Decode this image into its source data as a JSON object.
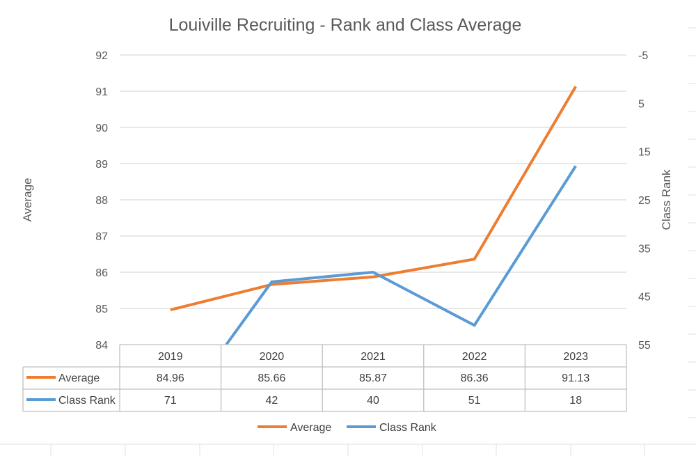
{
  "chart_data": {
    "type": "line",
    "title": "Louiville Recruiting - Rank and Class Average",
    "categories": [
      "2019",
      "2020",
      "2021",
      "2022",
      "2023"
    ],
    "series": [
      {
        "name": "Average",
        "axis": "left",
        "color": "#ED7D31",
        "values": [
          84.96,
          85.66,
          85.87,
          86.36,
          91.13
        ],
        "display_values": [
          "84.96",
          "85.66",
          "85.87",
          "86.36",
          "91.13"
        ]
      },
      {
        "name": "Class Rank",
        "axis": "right",
        "color": "#5B9BD5",
        "values": [
          71,
          42,
          40,
          51,
          18
        ],
        "display_values": [
          "71",
          "42",
          "40",
          "51",
          "18"
        ]
      }
    ],
    "y_left": {
      "label": "Average",
      "min": 84,
      "max": 92,
      "step": 1,
      "ticks": [
        "84",
        "85",
        "86",
        "87",
        "88",
        "89",
        "90",
        "91",
        "92"
      ]
    },
    "y_right": {
      "label": "Class Rank",
      "min": -5,
      "max": 55,
      "step": 10,
      "reversed": true,
      "ticks": [
        "-5",
        "5",
        "15",
        "25",
        "35",
        "45",
        "55"
      ]
    },
    "grid": true,
    "data_table": true,
    "legend": "bottom"
  },
  "colors": {
    "gridline": "#D9D9D9",
    "table_border": "#BFBFBF",
    "sheet_grid": "#E1E1E1"
  }
}
